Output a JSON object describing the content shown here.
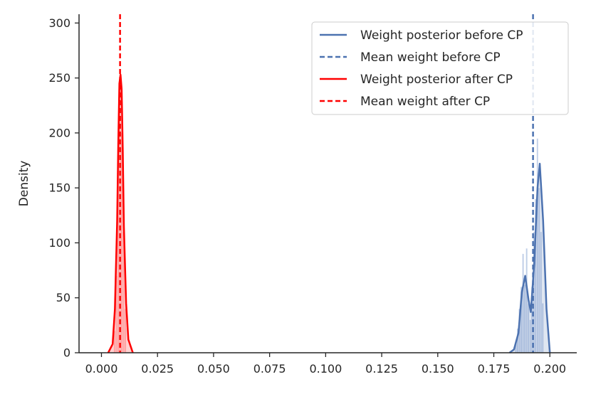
{
  "chart_data": {
    "type": "area",
    "title": "",
    "xlabel": "",
    "ylabel": "Density",
    "xlim": [
      -0.01,
      0.212
    ],
    "ylim": [
      0,
      308
    ],
    "x_ticks": [
      "0.000",
      "0.025",
      "0.050",
      "0.075",
      "0.100",
      "0.125",
      "0.150",
      "0.175",
      "0.200"
    ],
    "y_ticks": [
      "0",
      "50",
      "100",
      "150",
      "200",
      "250",
      "300"
    ],
    "grid": false,
    "legend_position": "top-right",
    "series": [
      {
        "name": "Weight posterior before CP",
        "kind": "density",
        "color": "#4c72b0",
        "x": [
          0.182,
          0.184,
          0.186,
          0.1875,
          0.189,
          0.1905,
          0.1915,
          0.193,
          0.1945,
          0.1955,
          0.197,
          0.1985,
          0.2
        ],
        "y": [
          0,
          3,
          18,
          55,
          70,
          48,
          37,
          80,
          150,
          172,
          120,
          40,
          0
        ]
      },
      {
        "name": "Mean weight before CP",
        "kind": "vline",
        "color": "#4c72b0",
        "x": 0.1925
      },
      {
        "name": "Weight posterior after CP",
        "kind": "density",
        "color": "#ff0000",
        "x": [
          0.003,
          0.005,
          0.006,
          0.007,
          0.0075,
          0.008,
          0.0085,
          0.009,
          0.0095,
          0.01,
          0.011,
          0.012,
          0.014
        ],
        "y": [
          0,
          8,
          40,
          120,
          190,
          245,
          253,
          240,
          185,
          115,
          45,
          12,
          0
        ]
      },
      {
        "name": "Mean weight after CP",
        "kind": "vline",
        "color": "#ff0000",
        "x": 0.0083
      }
    ],
    "histograms": [
      {
        "series": "Weight posterior before CP",
        "color": "#a9bedf",
        "bins": [
          {
            "x0": 0.1845,
            "x1": 0.1853,
            "y": 10
          },
          {
            "x0": 0.1853,
            "x1": 0.1861,
            "y": 22
          },
          {
            "x0": 0.1861,
            "x1": 0.1869,
            "y": 40
          },
          {
            "x0": 0.1869,
            "x1": 0.1877,
            "y": 60
          },
          {
            "x0": 0.1877,
            "x1": 0.1885,
            "y": 90
          },
          {
            "x0": 0.1885,
            "x1": 0.1893,
            "y": 62
          },
          {
            "x0": 0.1893,
            "x1": 0.1901,
            "y": 95
          },
          {
            "x0": 0.1901,
            "x1": 0.1909,
            "y": 45
          },
          {
            "x0": 0.1909,
            "x1": 0.1917,
            "y": 30
          },
          {
            "x0": 0.1917,
            "x1": 0.1925,
            "y": 60
          },
          {
            "x0": 0.1925,
            "x1": 0.1933,
            "y": 110
          },
          {
            "x0": 0.1933,
            "x1": 0.1941,
            "y": 140
          },
          {
            "x0": 0.1941,
            "x1": 0.1949,
            "y": 195
          },
          {
            "x0": 0.1949,
            "x1": 0.1957,
            "y": 150
          },
          {
            "x0": 0.1957,
            "x1": 0.1965,
            "y": 110
          },
          {
            "x0": 0.1965,
            "x1": 0.1973,
            "y": 45
          }
        ]
      },
      {
        "series": "Weight posterior after CP",
        "color": "#ffb3b3",
        "bins": [
          {
            "x0": 0.0055,
            "x1": 0.0063,
            "y": 20
          },
          {
            "x0": 0.0063,
            "x1": 0.0071,
            "y": 70
          },
          {
            "x0": 0.0071,
            "x1": 0.0079,
            "y": 180
          },
          {
            "x0": 0.0079,
            "x1": 0.0087,
            "y": 240
          },
          {
            "x0": 0.0087,
            "x1": 0.0095,
            "y": 200
          },
          {
            "x0": 0.0095,
            "x1": 0.0103,
            "y": 110
          },
          {
            "x0": 0.0103,
            "x1": 0.0111,
            "y": 40
          }
        ]
      }
    ]
  }
}
